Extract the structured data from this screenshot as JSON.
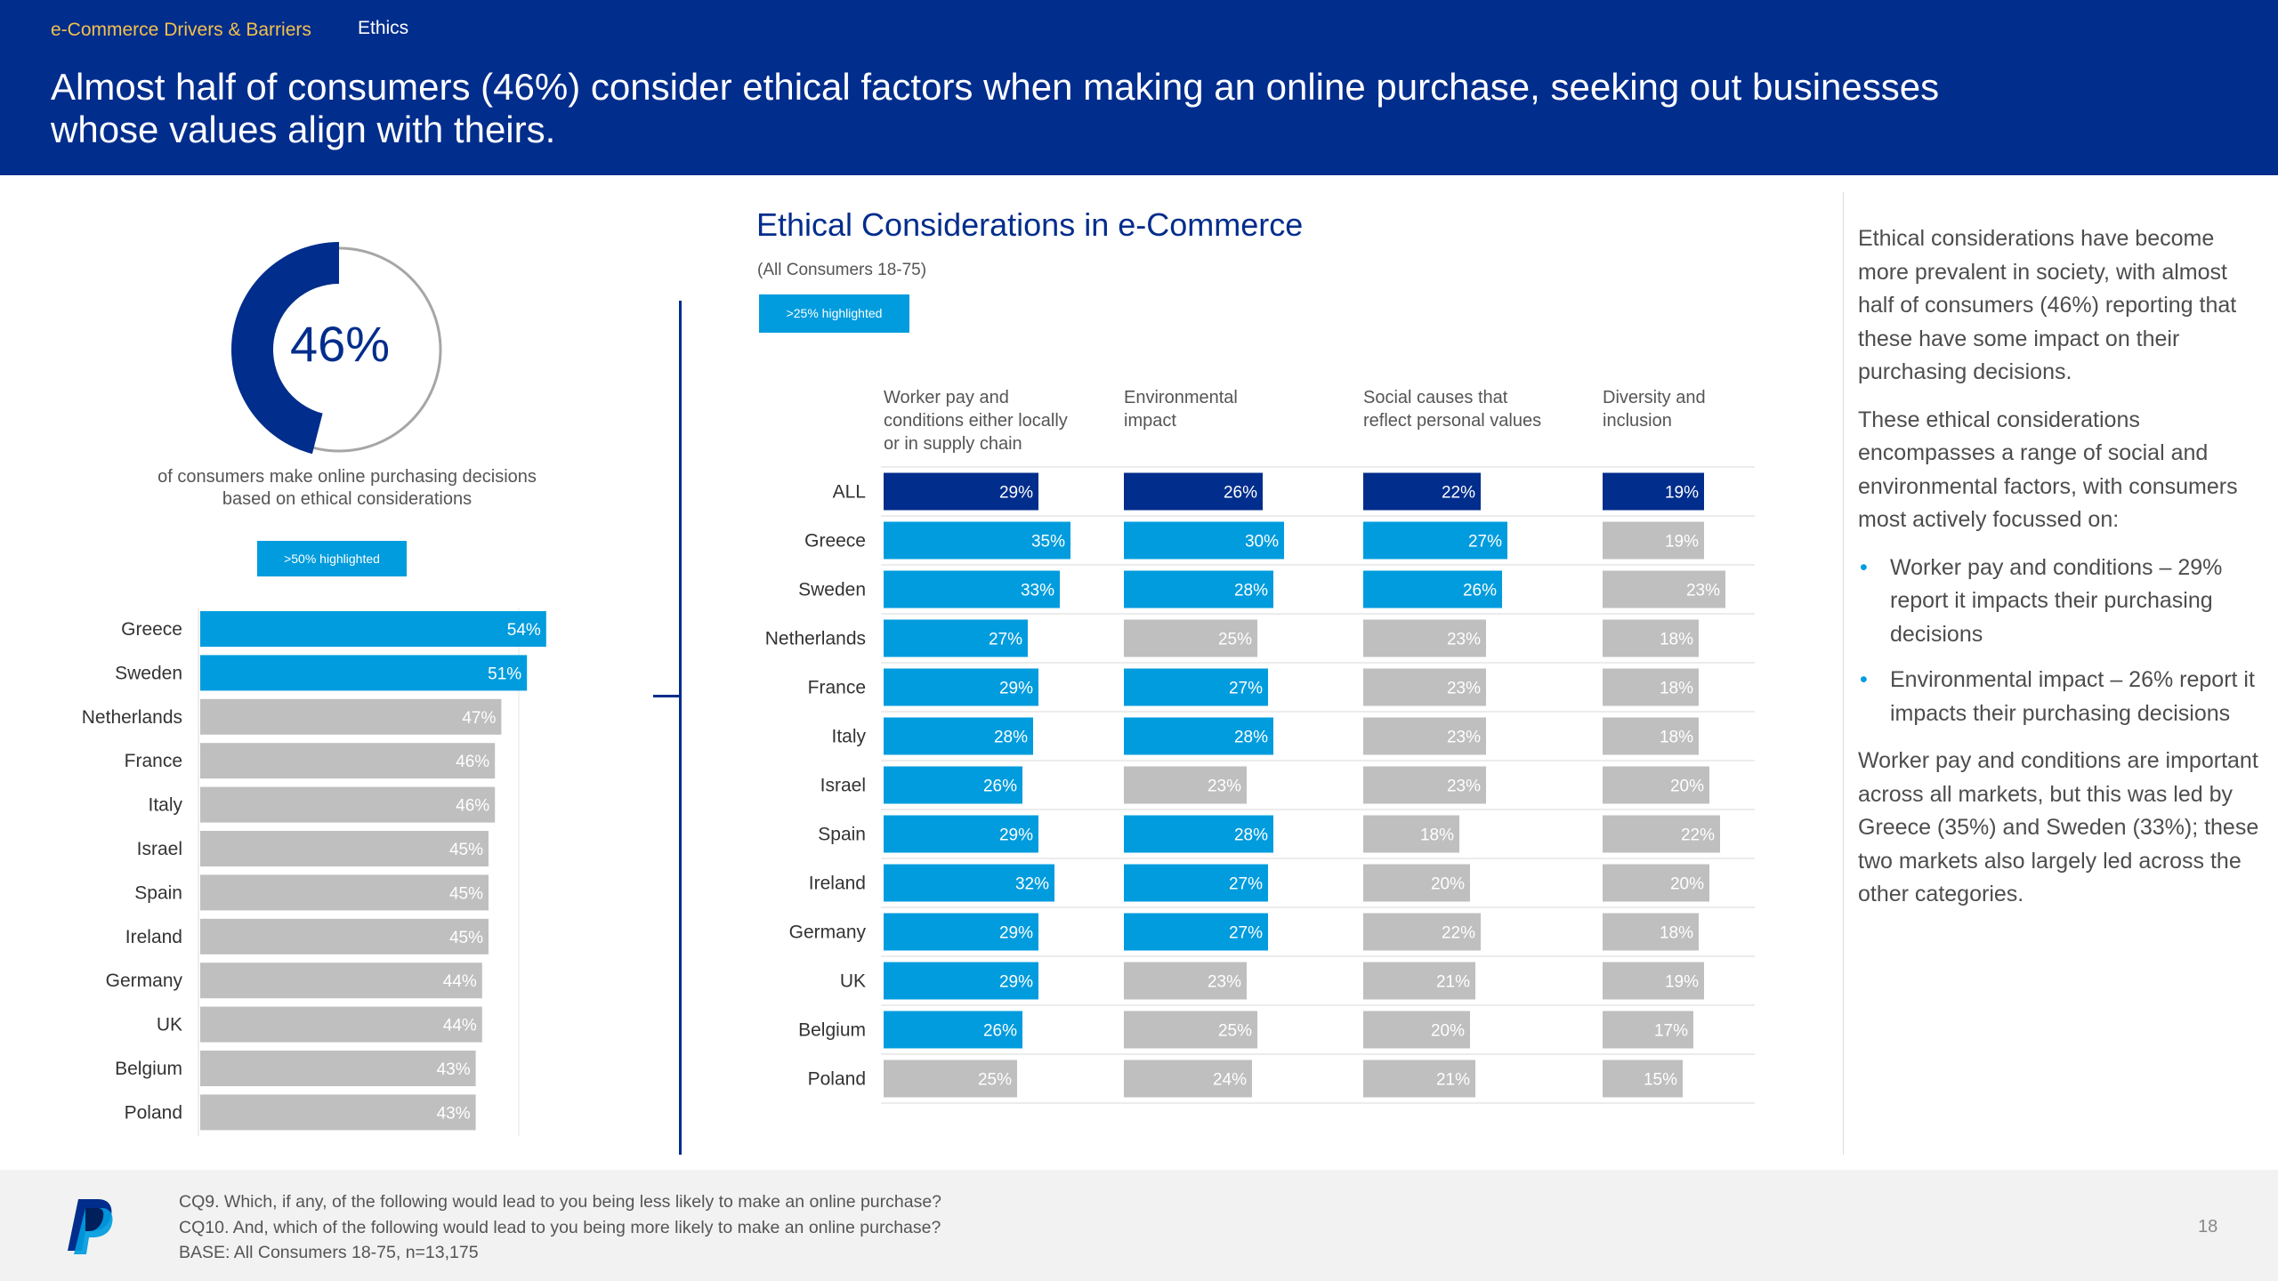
{
  "header": {
    "breadcrumb": "e-Commerce Drivers & Barriers",
    "tab": "Ethics",
    "headline": "Almost half of consumers (46%) consider ethical factors when making an online purchase, seeking out businesses whose values align with theirs."
  },
  "donut": {
    "value_label": "46%",
    "value": 46,
    "caption": "of consumers make online purchasing decisions based on ethical considerations"
  },
  "left_tag": ">50% highlighted",
  "right_tag": ">25% highlighted",
  "chart_title": "Ethical Considerations in e-Commerce",
  "chart_subtitle": "(All Consumers 18-75)",
  "colors": {
    "navy": "#012d8c",
    "blue": "#009cde",
    "grey": "#bfbfbf",
    "text": "#333333"
  },
  "chart_data": [
    {
      "type": "bar",
      "orientation": "horizontal",
      "title": "of consumers make online purchasing decisions based on ethical considerations",
      "categories": [
        "Greece",
        "Sweden",
        "Netherlands",
        "France",
        "Italy",
        "Israel",
        "Spain",
        "Ireland",
        "Germany",
        "UK",
        "Belgium",
        "Poland"
      ],
      "values": [
        54,
        51,
        47,
        46,
        46,
        45,
        45,
        45,
        44,
        44,
        43,
        43
      ],
      "highlight_threshold": 50,
      "unit": "%"
    },
    {
      "type": "bar",
      "orientation": "horizontal",
      "title": "Ethical Considerations in e-Commerce",
      "subtitle": "(All Consumers 18-75)",
      "categories": [
        "ALL",
        "Greece",
        "Sweden",
        "Netherlands",
        "France",
        "Italy",
        "Israel",
        "Spain",
        "Ireland",
        "Germany",
        "UK",
        "Belgium",
        "Poland"
      ],
      "highlight_threshold": 25,
      "unit": "%",
      "series": [
        {
          "name": "Worker pay and conditions either locally or in supply chain",
          "lines": [
            "Worker pay and",
            "conditions either locally",
            "or in supply chain"
          ],
          "values": [
            29,
            35,
            33,
            27,
            29,
            28,
            26,
            29,
            32,
            29,
            29,
            26,
            25
          ]
        },
        {
          "name": "Environmental impact",
          "lines": [
            "Environmental",
            "impact"
          ],
          "values": [
            26,
            30,
            28,
            25,
            27,
            28,
            23,
            28,
            27,
            27,
            23,
            25,
            24
          ]
        },
        {
          "name": "Social causes that reflect personal values",
          "lines": [
            "Social causes that",
            "reflect personal values"
          ],
          "values": [
            22,
            27,
            26,
            23,
            23,
            23,
            23,
            18,
            20,
            22,
            21,
            20,
            21
          ]
        },
        {
          "name": "Diversity and inclusion",
          "lines": [
            "Diversity and",
            "inclusion"
          ],
          "values": [
            19,
            19,
            23,
            18,
            18,
            18,
            20,
            22,
            20,
            18,
            19,
            17,
            15
          ]
        }
      ]
    }
  ],
  "commentary": {
    "p1": "Ethical considerations have become more prevalent in society, with almost half of consumers (46%) reporting that these have some impact on their purchasing decisions.",
    "p2": "These ethical considerations encompasses a range of social and environmental factors, with consumers most actively focussed on:",
    "bullets": [
      "Worker pay and conditions – 29% report it impacts their purchasing decisions",
      "Environmental impact – 26% report it impacts their purchasing decisions"
    ],
    "p3": "Worker pay and conditions are important across all markets, but this was led by Greece (35%) and Sweden (33%); these two markets also largely led across the other categories."
  },
  "footer": {
    "q1": "CQ9. Which, if any, of the following would lead to you being less likely to make an online purchase?",
    "q2": "CQ10. And, which of the following would lead to you being more likely to make an online purchase?",
    "base": "BASE: All Consumers 18-75, n=13,175",
    "page": "18"
  }
}
